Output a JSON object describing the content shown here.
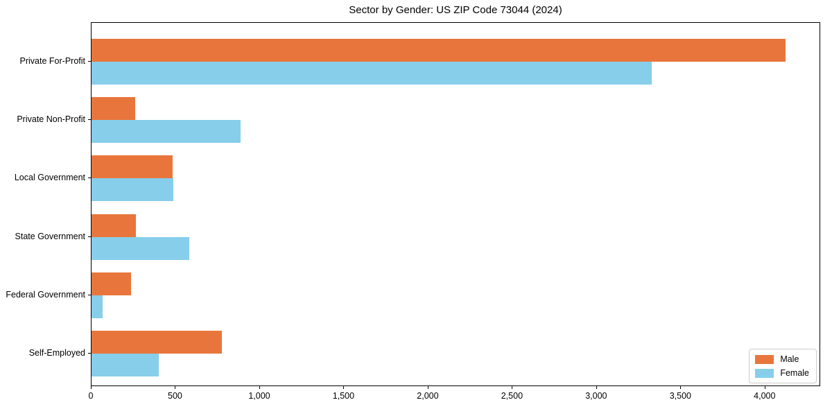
{
  "chart_data": {
    "type": "bar",
    "orientation": "horizontal",
    "title": "Sector by Gender: US ZIP Code 73044 (2024)",
    "categories": [
      "Private For-Profit",
      "Private Non-Profit",
      "Local Government",
      "State Government",
      "Federal Government",
      "Self-Employed"
    ],
    "series": [
      {
        "name": "Male",
        "color": "#e8763c",
        "values": [
          4120,
          260,
          480,
          265,
          235,
          775
        ]
      },
      {
        "name": "Female",
        "color": "#87ceeb",
        "values": [
          3325,
          885,
          485,
          580,
          65,
          400
        ]
      }
    ],
    "xlim": [
      0,
      4330
    ],
    "x_ticks": [
      0,
      500,
      1000,
      1500,
      2000,
      2500,
      3000,
      3500,
      4000
    ],
    "x_tick_labels": [
      "0",
      "500",
      "1,000",
      "1,500",
      "2,000",
      "2,500",
      "3,000",
      "3,500",
      "4,000"
    ],
    "xlabel": "",
    "ylabel": "",
    "grid": false,
    "legend_position": "lower right",
    "background_color": "#ffffff",
    "axis_color": "#000000"
  }
}
